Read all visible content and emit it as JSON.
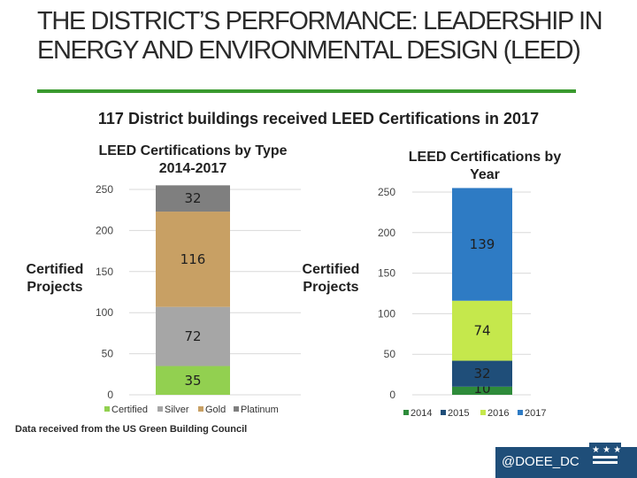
{
  "slide": {
    "title": "THE DISTRICT’S PERFORMANCE: LEADERSHIP IN ENERGY AND ENVIRONMENTAL DESIGN (LEED)",
    "subtitle": "117 District buildings received LEED Certifications in 2017",
    "footnote": "Data received from the US Green Building Council",
    "brand": "@DOEE_DC",
    "accent_color": "#3a9a2f",
    "brand_color": "#1f4e79",
    "brand_icon": "dc-flag-icon"
  },
  "chart_data": [
    {
      "type": "bar",
      "stacked": true,
      "title": "LEED Certifications by Type 2014-2017",
      "ylabel": "Certified Projects",
      "xlabel": "",
      "ylim": [
        0,
        250
      ],
      "yticks": [
        0,
        50,
        100,
        150,
        200,
        250
      ],
      "categories": [
        ""
      ],
      "grid": true,
      "legend": "bottom",
      "series": [
        {
          "name": "Certified",
          "values": [
            35
          ],
          "color": "#92d050"
        },
        {
          "name": "Silver",
          "values": [
            72
          ],
          "color": "#a6a6a6"
        },
        {
          "name": "Gold",
          "values": [
            116
          ],
          "color": "#c8a064"
        },
        {
          "name": "Platinum",
          "values": [
            32
          ],
          "color": "#7f7f7f"
        }
      ]
    },
    {
      "type": "bar",
      "stacked": true,
      "title": "LEED Certifications by Year",
      "ylabel": "Certified Projects",
      "xlabel": "",
      "ylim": [
        0,
        250
      ],
      "yticks": [
        0,
        50,
        100,
        150,
        200,
        250
      ],
      "categories": [
        ""
      ],
      "grid": true,
      "legend": "bottom",
      "series": [
        {
          "name": "2014",
          "values": [
            10
          ],
          "color": "#2e8b3a"
        },
        {
          "name": "2015",
          "values": [
            32
          ],
          "color": "#1f4e79"
        },
        {
          "name": "2016",
          "values": [
            74
          ],
          "color": "#c5e84c"
        },
        {
          "name": "2017",
          "values": [
            139
          ],
          "color": "#2e7bc4"
        }
      ]
    }
  ]
}
